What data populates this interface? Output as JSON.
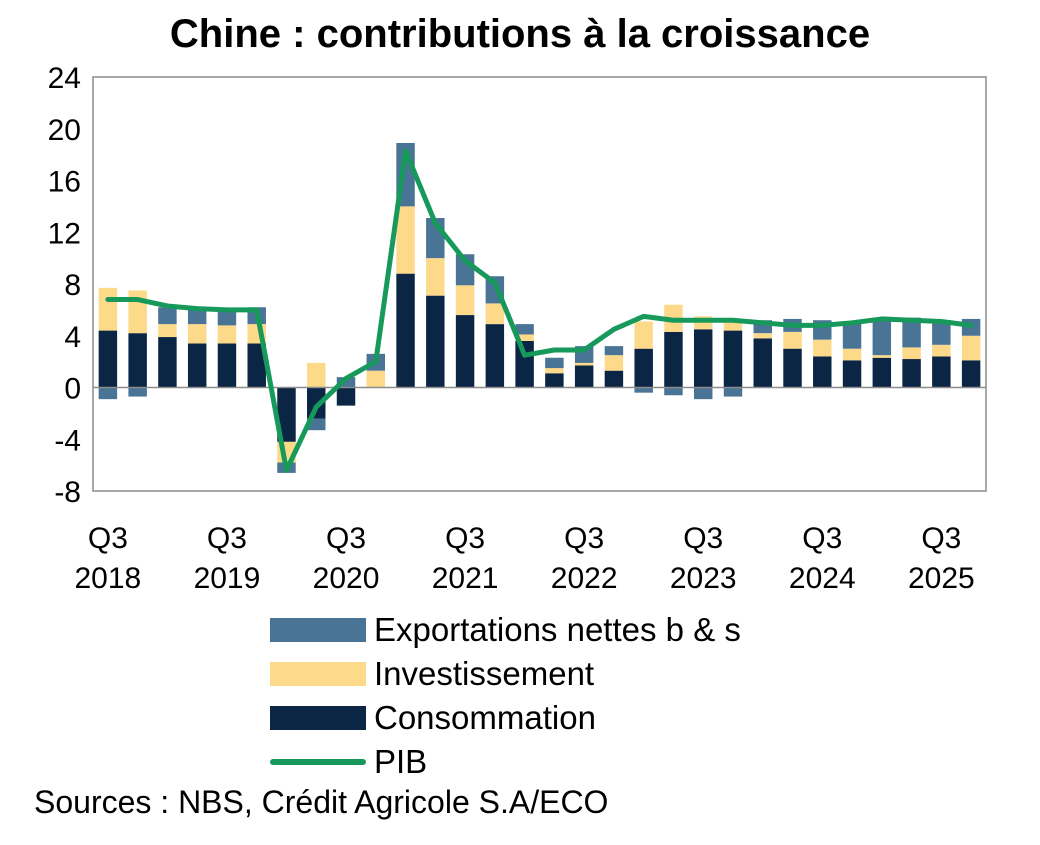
{
  "chart_data": {
    "type": "bar",
    "title": "Chine : contributions à la croissance",
    "xlabel": "",
    "ylabel": "",
    "ylim": [
      -8,
      24
    ],
    "yticks": [
      -8,
      -4,
      0,
      4,
      8,
      12,
      16,
      20,
      24
    ],
    "categories": [
      "Q3 2018",
      "Q4 2018",
      "Q1 2019",
      "Q2 2019",
      "Q3 2019",
      "Q4 2019",
      "Q1 2020",
      "Q2 2020",
      "Q3 2020",
      "Q4 2020",
      "Q1 2021",
      "Q2 2021",
      "Q3 2021",
      "Q4 2021",
      "Q1 2022",
      "Q2 2022",
      "Q3 2022",
      "Q4 2022",
      "Q1 2023",
      "Q2 2023",
      "Q3 2023",
      "Q4 2023",
      "Q1 2024",
      "Q2 2024",
      "Q3 2024",
      "Q4 2024",
      "Q1 2025",
      "Q2 2025",
      "Q3 2025",
      "Q4 2025"
    ],
    "xtick_labels": [
      {
        "index": 0,
        "quarter": "Q3",
        "year": "2018"
      },
      {
        "index": 4,
        "quarter": "Q3",
        "year": "2019"
      },
      {
        "index": 8,
        "quarter": "Q3",
        "year": "2020"
      },
      {
        "index": 12,
        "quarter": "Q3",
        "year": "2021"
      },
      {
        "index": 16,
        "quarter": "Q3",
        "year": "2022"
      },
      {
        "index": 20,
        "quarter": "Q3",
        "year": "2023"
      },
      {
        "index": 24,
        "quarter": "Q3",
        "year": "2024"
      },
      {
        "index": 28,
        "quarter": "Q3",
        "year": "2025"
      }
    ],
    "series": [
      {
        "name": "Consommation",
        "kind": "bar",
        "color": "#0B2545",
        "values": [
          4.4,
          4.2,
          3.9,
          3.4,
          3.4,
          3.4,
          -4.2,
          -2.4,
          -1.4,
          0.0,
          8.8,
          7.1,
          5.6,
          4.9,
          3.6,
          1.1,
          1.7,
          1.3,
          3.0,
          4.3,
          4.5,
          4.4,
          3.8,
          3.0,
          2.4,
          2.1,
          2.3,
          2.2,
          2.4,
          2.1
        ]
      },
      {
        "name": "Investissement",
        "kind": "bar",
        "color": "#FDD98A",
        "values": [
          3.3,
          3.3,
          1.0,
          1.5,
          1.4,
          1.5,
          -1.6,
          1.9,
          0.0,
          1.3,
          5.2,
          2.9,
          2.3,
          1.6,
          0.5,
          0.4,
          0.2,
          1.2,
          2.1,
          2.1,
          1.0,
          0.8,
          0.4,
          1.3,
          1.3,
          0.9,
          0.2,
          0.9,
          0.9,
          1.9
        ]
      },
      {
        "name": "Exportations nettes b & s",
        "kind": "bar",
        "color": "#4A7496",
        "values": [
          -0.9,
          -0.7,
          1.3,
          1.2,
          1.2,
          1.3,
          -0.8,
          -0.9,
          0.8,
          1.3,
          4.9,
          3.1,
          2.4,
          2.1,
          0.8,
          0.8,
          1.3,
          0.7,
          -0.4,
          -0.6,
          -0.9,
          -0.7,
          1.0,
          1.0,
          1.5,
          2.0,
          2.6,
          2.3,
          1.9,
          1.3
        ]
      },
      {
        "name": "PIB",
        "kind": "line",
        "color": "#16995A",
        "values": [
          6.8,
          6.8,
          6.3,
          6.1,
          6.0,
          6.0,
          -6.4,
          -1.5,
          0.7,
          2.0,
          18.3,
          12.7,
          9.8,
          8.1,
          2.5,
          2.9,
          2.9,
          4.5,
          5.5,
          5.2,
          5.2,
          5.2,
          5.0,
          4.8,
          4.8,
          5.0,
          5.3,
          5.2,
          5.1,
          4.8
        ]
      }
    ],
    "legend_position": "bottom"
  },
  "legend": [
    {
      "label": "Exportations nettes b & s",
      "color": "#4A7496",
      "kind": "bar"
    },
    {
      "label": "Investissement",
      "color": "#FDD98A",
      "kind": "bar"
    },
    {
      "label": "Consommation",
      "color": "#0B2545",
      "kind": "bar"
    },
    {
      "label": "PIB",
      "color": "#16995A",
      "kind": "line"
    }
  ],
  "sources": "Sources : NBS, Crédit Agricole S.A/ECO"
}
